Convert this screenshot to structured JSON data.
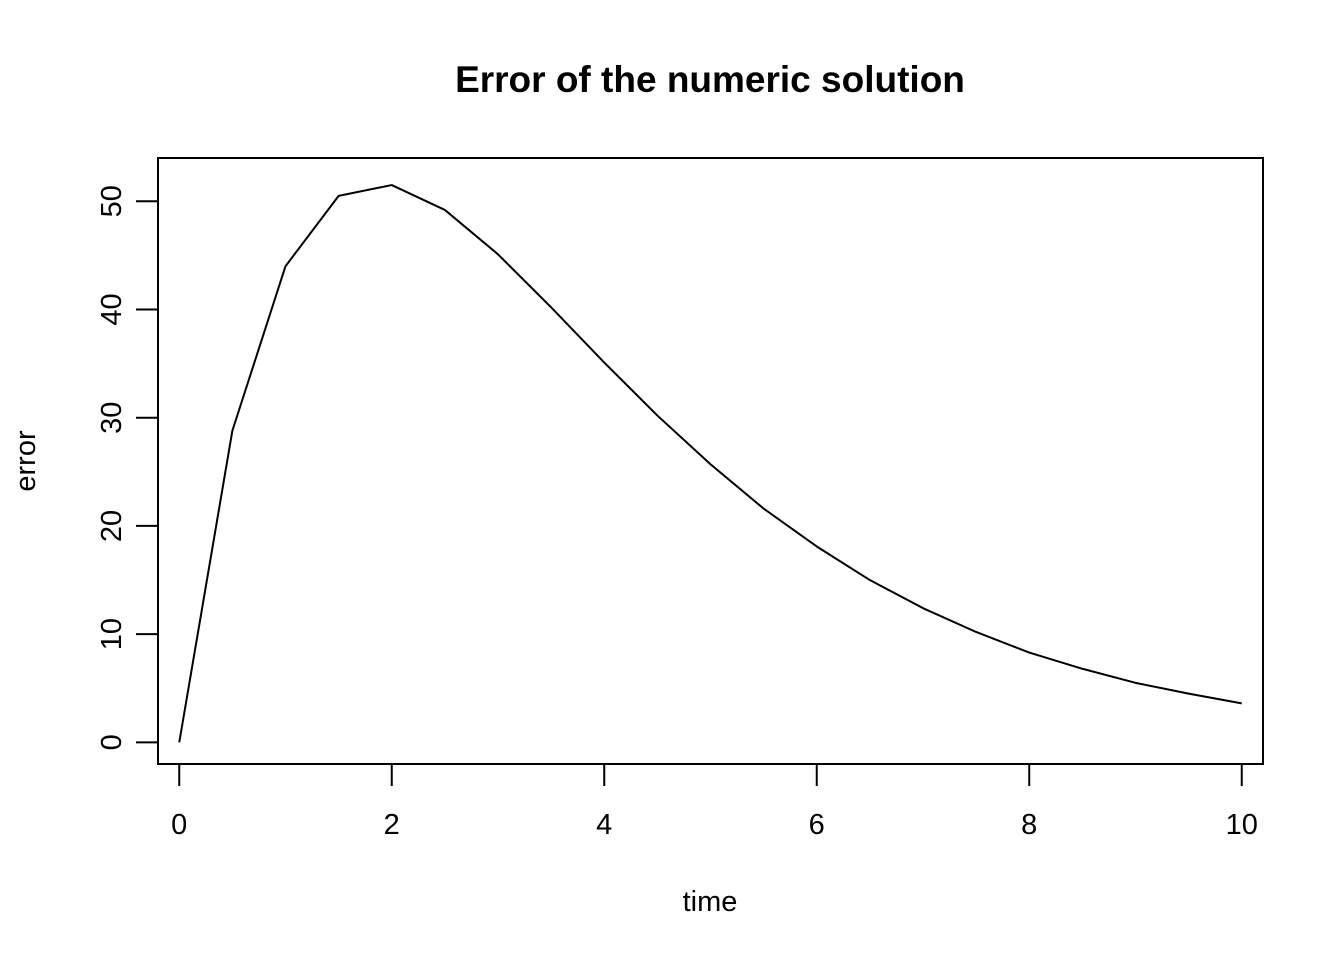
{
  "chart_data": {
    "type": "line",
    "title": "Error of the numeric solution",
    "xlabel": "time",
    "ylabel": "error",
    "xlim": [
      -0.2,
      10.2
    ],
    "ylim": [
      -2,
      54
    ],
    "x_ticks": [
      0,
      2,
      4,
      6,
      8,
      10
    ],
    "y_ticks": [
      0,
      10,
      20,
      30,
      40,
      50
    ],
    "x_tick_labels": [
      "0",
      "2",
      "4",
      "6",
      "8",
      "10"
    ],
    "y_tick_labels": [
      "0",
      "10",
      "20",
      "30",
      "40",
      "50"
    ],
    "grid": false,
    "line_color": "#000000",
    "series": [
      {
        "x": [
          0,
          0.5,
          1,
          1.5,
          2,
          2.5,
          3,
          3.5,
          4,
          4.5,
          5,
          5.5,
          6,
          6.5,
          7,
          7.5,
          8,
          8.5,
          9,
          9.5,
          10
        ],
        "y": [
          0,
          28.8,
          44.0,
          50.5,
          51.5,
          49.2,
          45.1,
          40.2,
          35.1,
          30.2,
          25.7,
          21.6,
          18.1,
          15.0,
          12.4,
          10.2,
          8.3,
          6.8,
          5.5,
          4.5,
          3.6
        ]
      }
    ]
  }
}
